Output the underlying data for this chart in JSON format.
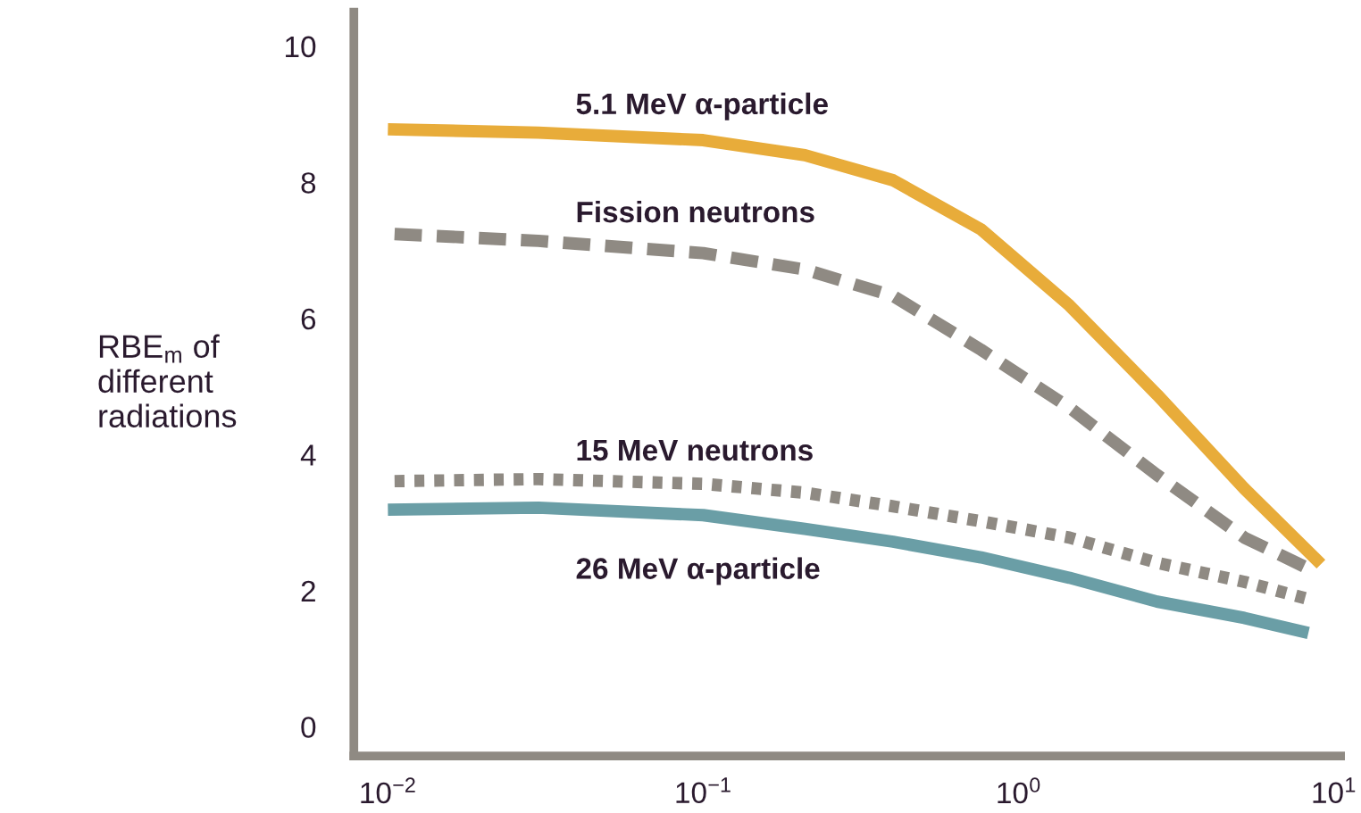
{
  "chart_data": {
    "type": "line",
    "ylabel": "RBE$_{m}$ of\ndifferent\nradiations",
    "log": "x",
    "xlim": [
      0.0078,
      10.5
    ],
    "ylim": [
      -0.43,
      10.5
    ],
    "xticks": [
      {
        "value": 0.01,
        "label": "10$^{−2}$"
      },
      {
        "value": 0.1,
        "label": "10$^{−1}$"
      },
      {
        "value": 1,
        "label": "10$^{0}$"
      },
      {
        "value": 10,
        "label": "10$^{1}$"
      }
    ],
    "yticks": [
      0,
      2,
      4,
      6,
      8,
      10
    ],
    "grid": false,
    "legend": false,
    "marker": "none",
    "series": [
      {
        "name": "5.1 MeV α-particle",
        "color": "#e8ac3a",
        "line_style": "solid",
        "x": [
          0.01,
          0.03,
          0.1,
          0.21,
          0.4,
          0.76,
          1.45,
          2.75,
          5.2,
          9.1
        ],
        "values": [
          8.78,
          8.73,
          8.62,
          8.4,
          8.03,
          7.31,
          6.19,
          4.88,
          3.5,
          2.39
        ]
      },
      {
        "name": "Fission neutrons",
        "color": "#8f8a83",
        "line_style": "dashed",
        "x": [
          0.0105,
          0.03,
          0.1,
          0.21,
          0.4,
          0.76,
          1.45,
          2.75,
          5.2,
          8.7
        ],
        "values": [
          7.24,
          7.14,
          6.96,
          6.72,
          6.33,
          5.54,
          4.69,
          3.7,
          2.78,
          2.28
        ]
      },
      {
        "name": "15 MeV neutrons",
        "color": "#8f8a83",
        "line_style": "dotted",
        "x": [
          0.0105,
          0.03,
          0.1,
          0.21,
          0.4,
          0.76,
          1.45,
          2.75,
          5.2,
          8.1
        ],
        "values": [
          3.61,
          3.64,
          3.57,
          3.44,
          3.24,
          3.02,
          2.78,
          2.41,
          2.13,
          1.89
        ]
      },
      {
        "name": "26 MeV α-particle",
        "color": "#6a9ea6",
        "line_style": "solid",
        "x": [
          0.01,
          0.03,
          0.1,
          0.21,
          0.4,
          0.76,
          1.45,
          2.75,
          5.2,
          8.3
        ],
        "values": [
          3.19,
          3.22,
          3.11,
          2.91,
          2.72,
          2.49,
          2.19,
          1.84,
          1.6,
          1.38
        ]
      }
    ]
  }
}
